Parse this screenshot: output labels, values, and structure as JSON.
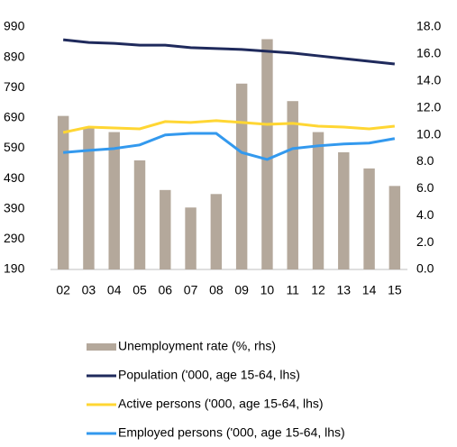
{
  "chart_data": {
    "type": "combo",
    "categories": [
      "02",
      "03",
      "04",
      "05",
      "06",
      "07",
      "08",
      "09",
      "10",
      "11",
      "12",
      "13",
      "14",
      "15"
    ],
    "ylim": [
      190,
      990
    ],
    "yticks": [
      190,
      290,
      390,
      490,
      590,
      690,
      790,
      890,
      990
    ],
    "y2lim": [
      0,
      18
    ],
    "y2ticks": [
      {
        "value": 0,
        "label": "0.0"
      },
      {
        "value": 2,
        "label": "2.0"
      },
      {
        "value": 4,
        "label": "4.0"
      },
      {
        "value": 6,
        "label": "6.0"
      },
      {
        "value": 8,
        "label": "8.0"
      },
      {
        "value": 10,
        "label": "10.0"
      },
      {
        "value": 12,
        "label": "12.0"
      },
      {
        "value": 14,
        "label": "14.0"
      },
      {
        "value": 16,
        "label": "16.0"
      },
      {
        "value": 18,
        "label": "18.0"
      }
    ],
    "series": [
      {
        "name": "Unemployment rate (%, rhs)",
        "type": "bar",
        "axis": "y2",
        "color": "#b4a89b",
        "values": [
          11.4,
          10.5,
          10.2,
          8.1,
          5.9,
          4.6,
          5.6,
          13.8,
          17.1,
          12.5,
          10.2,
          8.7,
          7.5,
          6.2
        ]
      },
      {
        "name": "Population ('000, age 15-64, lhs)",
        "type": "line",
        "color": "#1f2a5c",
        "values": [
          948,
          939,
          936,
          930,
          930,
          922,
          919,
          916,
          910,
          904,
          895,
          886,
          877,
          868
        ]
      },
      {
        "name": "Active persons ('000, age 15-64, lhs)",
        "type": "line",
        "color": "#ffd633",
        "values": [
          642,
          660,
          657,
          654,
          678,
          675,
          681,
          675,
          669,
          672,
          663,
          660,
          654,
          663
        ]
      },
      {
        "name": "Employed persons ('000, age 15-64, lhs)",
        "type": "line",
        "color": "#3399ee",
        "values": [
          576,
          583,
          589,
          601,
          634,
          639,
          639,
          576,
          553,
          589,
          598,
          604,
          607,
          622
        ]
      }
    ]
  }
}
